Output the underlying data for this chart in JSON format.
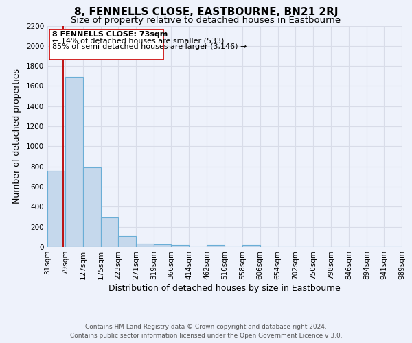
{
  "title": "8, FENNELLS CLOSE, EASTBOURNE, BN21 2RJ",
  "subtitle": "Size of property relative to detached houses in Eastbourne",
  "xlabel": "Distribution of detached houses by size in Eastbourne",
  "ylabel": "Number of detached properties",
  "bar_edges": [
    31,
    79,
    127,
    175,
    223,
    271,
    319,
    366,
    414,
    462,
    510,
    558,
    606,
    654,
    702,
    750,
    798,
    846,
    894,
    941,
    989
  ],
  "bar_heights": [
    760,
    1690,
    790,
    295,
    110,
    35,
    25,
    20,
    0,
    20,
    0,
    20,
    0,
    0,
    0,
    0,
    0,
    0,
    0,
    0
  ],
  "bar_color": "#c5d8ec",
  "bar_edge_color": "#6aaed6",
  "property_line_x": 73,
  "property_line_color": "#bb0000",
  "ylim": [
    0,
    2200
  ],
  "yticks": [
    0,
    200,
    400,
    600,
    800,
    1000,
    1200,
    1400,
    1600,
    1800,
    2000,
    2200
  ],
  "xtick_labels": [
    "31sqm",
    "79sqm",
    "127sqm",
    "175sqm",
    "223sqm",
    "271sqm",
    "319sqm",
    "366sqm",
    "414sqm",
    "462sqm",
    "510sqm",
    "558sqm",
    "606sqm",
    "654sqm",
    "702sqm",
    "750sqm",
    "798sqm",
    "846sqm",
    "894sqm",
    "941sqm",
    "989sqm"
  ],
  "annotation_box_text_line1": "8 FENNELLS CLOSE: 73sqm",
  "annotation_box_text_line2": "← 14% of detached houses are smaller (533)",
  "annotation_box_text_line3": "85% of semi-detached houses are larger (3,146) →",
  "footer_line1": "Contains HM Land Registry data © Crown copyright and database right 2024.",
  "footer_line2": "Contains public sector information licensed under the Open Government Licence v 3.0.",
  "background_color": "#eef2fb",
  "grid_color": "#d8dce8",
  "title_fontsize": 11,
  "subtitle_fontsize": 9.5,
  "axis_label_fontsize": 9,
  "tick_fontsize": 7.5,
  "footer_fontsize": 6.5
}
